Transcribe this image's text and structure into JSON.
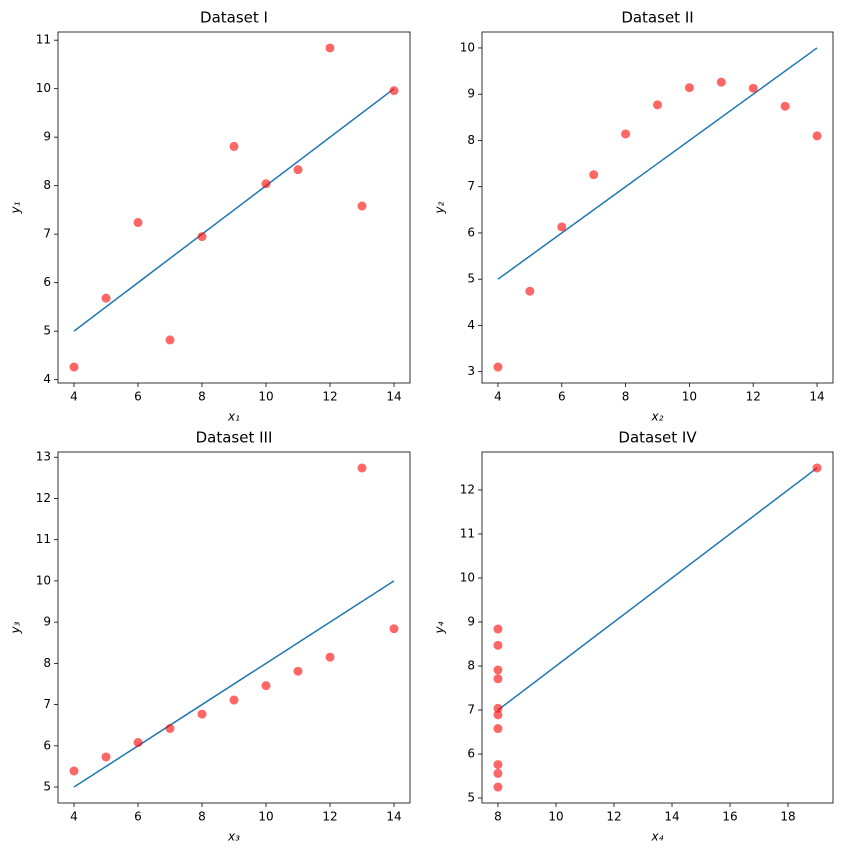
{
  "chart_data": [
    {
      "type": "scatter",
      "title": "Dataset I",
      "x_label": "x₁",
      "y_label": "y₁",
      "x": [
        10,
        8,
        13,
        9,
        11,
        14,
        6,
        4,
        12,
        7,
        5
      ],
      "values": [
        8.04,
        6.95,
        7.58,
        8.81,
        8.33,
        9.96,
        7.24,
        4.26,
        10.84,
        4.82,
        5.68
      ],
      "color": "#ff0000",
      "fit": {
        "values": [
          8,
          7,
          9.5,
          7.5,
          8.5,
          10,
          6,
          5,
          9,
          6.5,
          5.5
        ],
        "color": "#1f77b4"
      },
      "xlim": [
        3.5,
        14.5
      ],
      "ylim": [
        3.931,
        11.169
      ],
      "xticks": [
        4,
        6,
        8,
        10,
        12,
        14
      ],
      "yticks": [
        4,
        5,
        6,
        7,
        8,
        9,
        10,
        11
      ]
    },
    {
      "type": "scatter",
      "title": "Dataset II",
      "x_label": "x₂",
      "y_label": "y₂",
      "x": [
        10,
        8,
        13,
        9,
        11,
        14,
        6,
        4,
        12,
        7,
        5
      ],
      "values": [
        9.14,
        8.14,
        8.74,
        8.77,
        9.26,
        8.1,
        6.13,
        3.1,
        9.13,
        7.26,
        4.74
      ],
      "color": "#ff0000",
      "fit": {
        "values": [
          8,
          7,
          9.5,
          7.5,
          8.5,
          10,
          6,
          5,
          9,
          6.5,
          5.5
        ],
        "color": "#1f77b4"
      },
      "xlim": [
        3.5,
        14.5
      ],
      "ylim": [
        2.755,
        10.345
      ],
      "xticks": [
        4,
        6,
        8,
        10,
        12,
        14
      ],
      "yticks": [
        3,
        4,
        5,
        6,
        7,
        8,
        9,
        10
      ]
    },
    {
      "type": "scatter",
      "title": "Dataset III",
      "x_label": "x₃",
      "y_label": "y₃",
      "x": [
        10,
        8,
        13,
        9,
        11,
        14,
        6,
        4,
        12,
        7,
        5
      ],
      "values": [
        7.46,
        6.77,
        12.74,
        7.11,
        7.81,
        8.84,
        6.08,
        5.39,
        8.15,
        6.42,
        5.73
      ],
      "color": "#ff0000",
      "fit": {
        "values": [
          8,
          7,
          9.5,
          7.5,
          8.5,
          10,
          6,
          5,
          9,
          6.5,
          5.5
        ],
        "color": "#1f77b4"
      },
      "xlim": [
        3.5,
        14.5
      ],
      "ylim": [
        4.613,
        13.127
      ],
      "xticks": [
        4,
        6,
        8,
        10,
        12,
        14
      ],
      "yticks": [
        5,
        6,
        7,
        8,
        9,
        10,
        11,
        12,
        13
      ]
    },
    {
      "type": "scatter",
      "title": "Dataset IV",
      "x_label": "x₄",
      "y_label": "y₄",
      "x": [
        8,
        8,
        8,
        8,
        8,
        8,
        8,
        19,
        8,
        8,
        8
      ],
      "values": [
        6.58,
        5.76,
        7.71,
        8.84,
        8.47,
        7.04,
        5.25,
        12.5,
        5.56,
        7.91,
        6.89
      ],
      "color": "#ff0000",
      "fit": {
        "values": [
          7,
          7,
          7,
          7,
          7,
          7,
          7,
          12.5,
          7,
          7,
          7
        ],
        "color": "#1f77b4"
      },
      "xlim": [
        7.45,
        19.55
      ],
      "ylim": [
        4.8875,
        12.8625
      ],
      "xticks": [
        8,
        10,
        12,
        14,
        16,
        18
      ],
      "yticks": [
        5,
        6,
        7,
        8,
        9,
        10,
        11,
        12
      ]
    }
  ]
}
